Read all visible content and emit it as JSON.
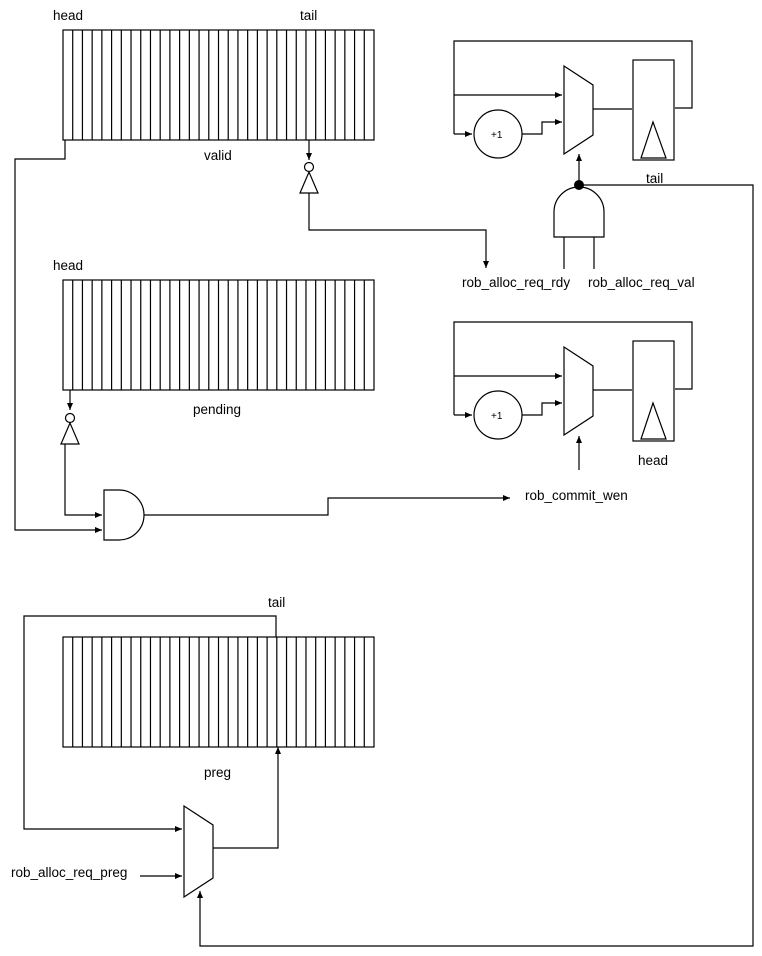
{
  "colors": {
    "line": "#000000",
    "background": "#ffffff"
  },
  "arrays": {
    "valid": {
      "label": "valid",
      "head_label": "head",
      "tail_label": "tail",
      "cells": 32
    },
    "pending": {
      "label": "pending",
      "head_label": "head",
      "cells": 32
    },
    "preg": {
      "label": "preg",
      "tail_label": "tail",
      "cells": 32
    }
  },
  "counters": {
    "tail": {
      "label": "tail",
      "incr_label": "+1"
    },
    "head": {
      "label": "head",
      "incr_label": "+1"
    }
  },
  "signals": {
    "rob_alloc_req_rdy": "rob_alloc_req_rdy",
    "rob_alloc_req_val": "rob_alloc_req_val",
    "rob_commit_wen": "rob_commit_wen",
    "rob_alloc_req_preg": "rob_alloc_req_preg"
  }
}
